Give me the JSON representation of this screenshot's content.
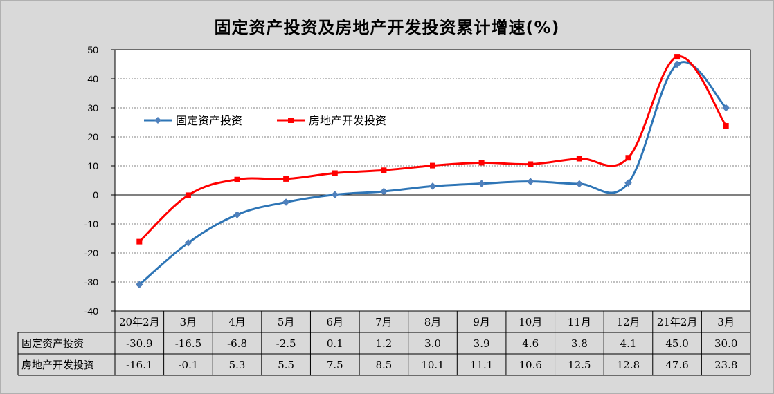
{
  "chart_data": {
    "type": "line",
    "title": "固定资产投资及房地产开发投资累计增速(%)",
    "categories": [
      "20年2月",
      "3月",
      "4月",
      "5月",
      "6月",
      "7月",
      "8月",
      "9月",
      "10月",
      "11月",
      "12月",
      "21年2月",
      "3月"
    ],
    "series": [
      {
        "name": "固定资产投资",
        "color": "#2e75b6",
        "marker": "diamond",
        "values": [
          -30.9,
          -16.5,
          -6.8,
          -2.5,
          0.1,
          1.2,
          3.0,
          3.9,
          4.6,
          3.8,
          4.1,
          45.0,
          30.0
        ]
      },
      {
        "name": "房地产开发投资",
        "color": "#ff0000",
        "marker": "square",
        "values": [
          -16.1,
          -0.1,
          5.3,
          5.5,
          7.5,
          8.5,
          10.1,
          11.1,
          10.6,
          12.5,
          12.8,
          47.6,
          23.8
        ]
      }
    ],
    "value_labels": [
      [
        "-30.9",
        "-16.5",
        "-6.8",
        "-2.5",
        "0.1",
        "1.2",
        "3.0",
        "3.9",
        "4.6",
        "3.8",
        "4.1",
        "45.0",
        "30.0"
      ],
      [
        "-16.1",
        "-0.1",
        "5.3",
        "5.5",
        "7.5",
        "8.5",
        "10.1",
        "11.1",
        "10.6",
        "12.5",
        "12.8",
        "47.6",
        "23.8"
      ]
    ],
    "yticks": [
      "50",
      "40",
      "30",
      "20",
      "10",
      "0",
      "-10",
      "-20",
      "-30",
      "-40"
    ],
    "ylim": [
      -40,
      50
    ],
    "grid": true,
    "legend_placement": "inside-top-left",
    "smooth": true
  }
}
